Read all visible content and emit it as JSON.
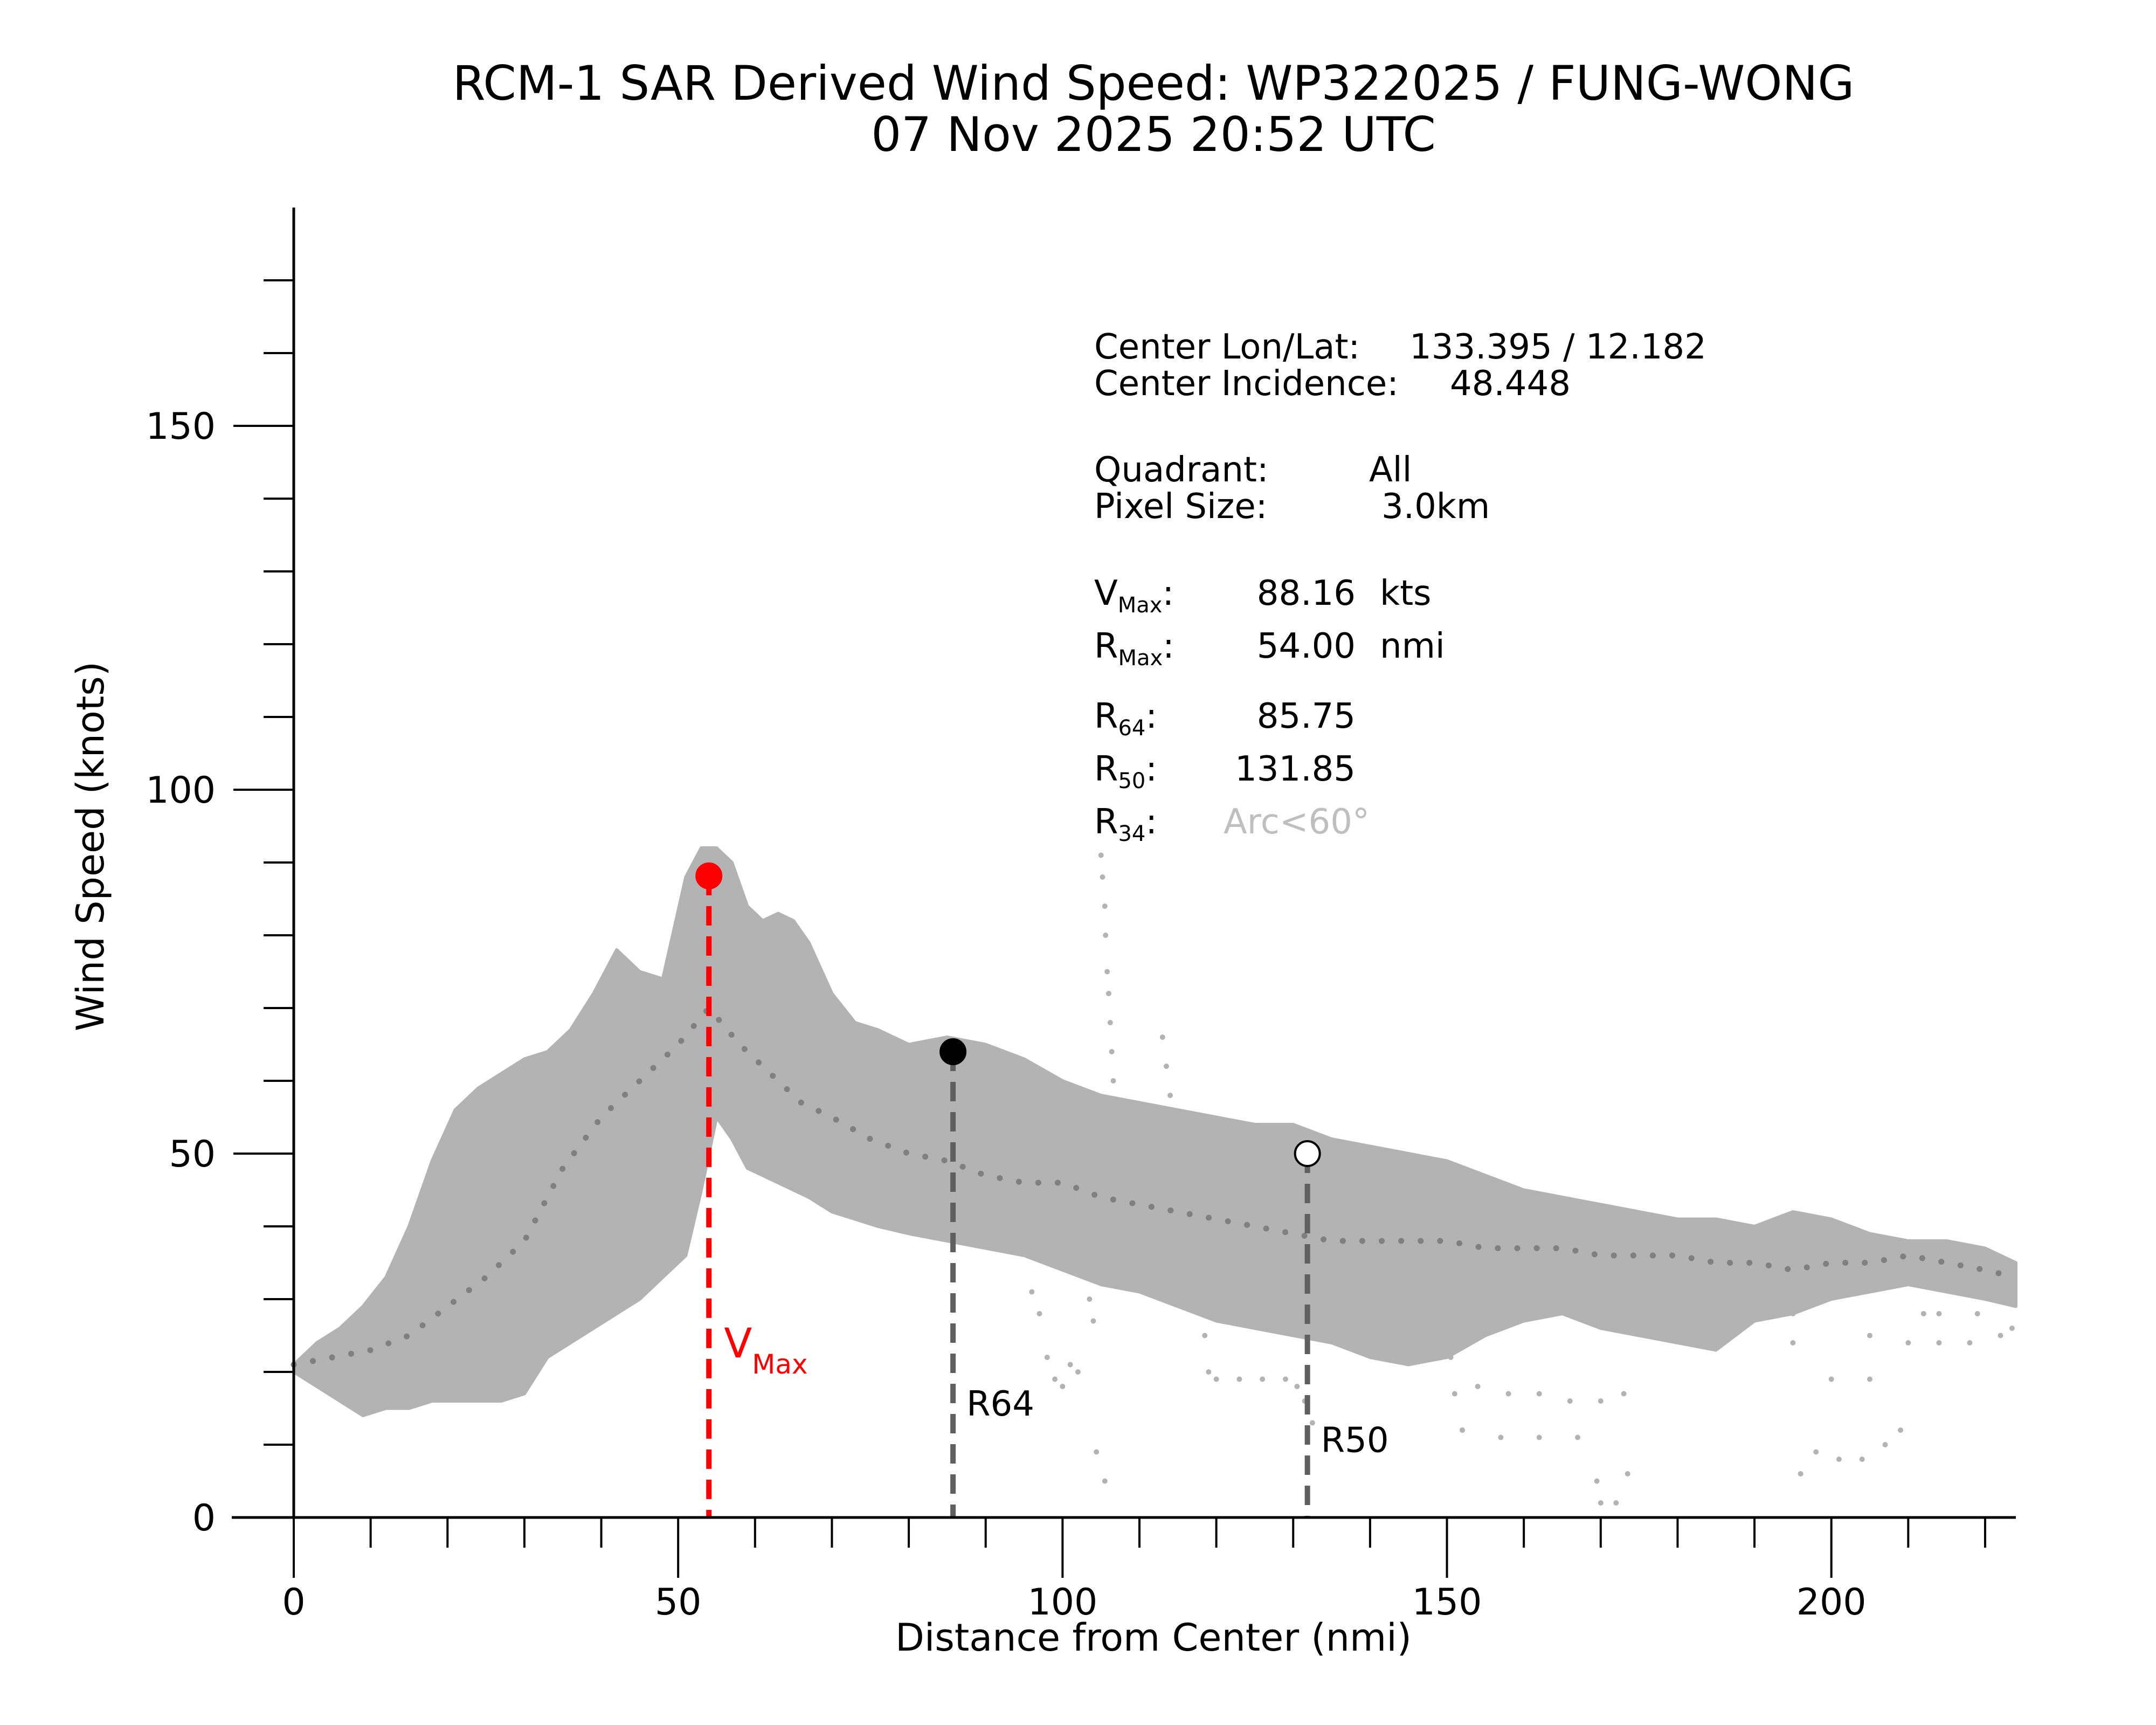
{
  "chart_data": {
    "type": "scatter",
    "title": "RCM-1 SAR Derived Wind Speed: WP322025 / FUNG-WONG",
    "subtitle": "07 Nov 2025 20:52 UTC",
    "xlabel": "Distance from Center (nmi)",
    "ylabel": "Wind Speed (knots)",
    "xlim": [
      0,
      224
    ],
    "ylim": [
      0,
      180
    ],
    "x_major_ticks": [
      0,
      50,
      100,
      150,
      200
    ],
    "x_minor_step": 10,
    "y_major_ticks": [
      0,
      50,
      100,
      150
    ],
    "y_minor_step": 10,
    "colors": {
      "scatter": "#b3b3b3",
      "mean": "#808080",
      "vmax": "#ff0000",
      "radius_line": "#606060",
      "r34_value": "#bfbfbf"
    },
    "scatter_envelope": {
      "name": "SAR wind speed samples",
      "x": [
        0,
        3,
        6,
        9,
        12,
        15,
        18,
        21,
        24,
        27,
        30,
        33,
        36,
        39,
        42,
        45,
        48,
        51,
        53,
        55,
        57,
        59,
        61,
        63,
        65,
        67,
        70,
        73,
        76,
        80,
        85,
        90,
        95,
        100,
        105,
        110,
        115,
        120,
        125,
        130,
        135,
        140,
        145,
        150,
        155,
        160,
        165,
        170,
        175,
        180,
        185,
        190,
        195,
        200,
        205,
        210,
        215,
        220,
        224
      ],
      "upper": [
        21,
        24,
        26,
        29,
        33,
        40,
        49,
        56,
        59,
        61,
        63,
        64,
        67,
        72,
        78,
        75,
        74,
        88,
        92,
        92,
        90,
        84,
        82,
        83,
        82,
        79,
        72,
        68,
        67,
        65,
        66,
        65,
        63,
        60,
        58,
        57,
        56,
        55,
        54,
        54,
        52,
        51,
        50,
        49,
        47,
        45,
        44,
        43,
        42,
        41,
        41,
        40,
        42,
        41,
        39,
        38,
        38,
        37,
        35
      ],
      "lower": [
        20,
        18,
        16,
        14,
        15,
        15,
        16,
        16,
        16,
        16,
        17,
        22,
        24,
        26,
        28,
        30,
        33,
        36,
        45,
        55,
        52,
        48,
        47,
        46,
        45,
        44,
        42,
        41,
        40,
        39,
        38,
        37,
        36,
        34,
        32,
        31,
        29,
        27,
        26,
        25,
        24,
        22,
        21,
        22,
        25,
        27,
        28,
        26,
        25,
        24,
        23,
        27,
        28,
        30,
        31,
        32,
        31,
        30,
        29
      ]
    },
    "outlier_points": {
      "name": "SAR outlier samples",
      "points": [
        [
          105.0,
          91
        ],
        [
          105.2,
          88
        ],
        [
          105.5,
          84
        ],
        [
          105.6,
          80
        ],
        [
          105.8,
          75
        ],
        [
          106.0,
          72
        ],
        [
          106.2,
          68
        ],
        [
          106.4,
          64
        ],
        [
          106.6,
          60
        ],
        [
          106.7,
          57
        ],
        [
          113.0,
          66
        ],
        [
          113.5,
          62
        ],
        [
          114.0,
          58
        ],
        [
          103.5,
          30
        ],
        [
          104.0,
          27
        ],
        [
          104.4,
          9
        ],
        [
          105.5,
          5
        ],
        [
          96.0,
          31
        ],
        [
          97.0,
          28
        ],
        [
          98.0,
          22
        ],
        [
          99.0,
          19
        ],
        [
          100.0,
          18
        ],
        [
          101.0,
          21
        ],
        [
          102.0,
          20
        ],
        [
          118.0,
          29
        ],
        [
          118.5,
          25
        ],
        [
          119.0,
          20
        ],
        [
          120.0,
          19
        ],
        [
          123.0,
          19
        ],
        [
          126.0,
          19
        ],
        [
          129.0,
          19
        ],
        [
          130.5,
          18
        ],
        [
          131.5,
          16
        ],
        [
          132.5,
          13
        ],
        [
          151.0,
          28
        ],
        [
          150.5,
          22
        ],
        [
          151.0,
          17
        ],
        [
          152.0,
          12
        ],
        [
          154.0,
          18
        ],
        [
          158.0,
          17
        ],
        [
          162.0,
          17
        ],
        [
          166.0,
          16
        ],
        [
          170.0,
          16
        ],
        [
          173.0,
          17
        ],
        [
          152.0,
          12
        ],
        [
          157.0,
          11
        ],
        [
          162.0,
          11
        ],
        [
          167.0,
          11
        ],
        [
          169.5,
          5
        ],
        [
          170.0,
          2
        ],
        [
          172.0,
          2
        ],
        [
          173.5,
          6
        ],
        [
          196.0,
          6
        ],
        [
          198.0,
          9
        ],
        [
          201.0,
          8
        ],
        [
          204.0,
          8
        ],
        [
          207.0,
          10
        ],
        [
          209.0,
          12
        ],
        [
          195.0,
          24
        ],
        [
          200.0,
          19
        ],
        [
          205.0,
          19
        ],
        [
          210.0,
          24
        ],
        [
          214.0,
          24
        ],
        [
          218.0,
          24
        ],
        [
          222.0,
          25
        ],
        [
          223.5,
          26
        ],
        [
          214.0,
          28
        ],
        [
          219.0,
          28
        ],
        [
          223.0,
          30
        ],
        [
          195.0,
          28
        ],
        [
          205.0,
          25
        ],
        [
          212.0,
          28
        ]
      ]
    },
    "mean_profile": {
      "name": "Mean wind speed",
      "x": [
        0,
        5,
        10,
        15,
        20,
        25,
        30,
        35,
        40,
        45,
        50,
        54,
        58,
        62,
        66,
        70,
        75,
        80,
        85,
        90,
        95,
        100,
        105,
        110,
        115,
        120,
        125,
        130,
        135,
        140,
        145,
        150,
        155,
        160,
        165,
        170,
        175,
        180,
        185,
        190,
        195,
        200,
        205,
        210,
        215,
        220,
        224
      ],
      "y": [
        21,
        22,
        23,
        25,
        29,
        33,
        38,
        48,
        55,
        60,
        65,
        70,
        65,
        61,
        57,
        55,
        52,
        50,
        49,
        47,
        46,
        46,
        44,
        43,
        42,
        41,
        40,
        39,
        38,
        38,
        38,
        38,
        37,
        37,
        37,
        36,
        36,
        36,
        35,
        35,
        34,
        35,
        35,
        36,
        35,
        34,
        33
      ]
    },
    "markers": [
      {
        "id": "vmax",
        "label": "V",
        "label_sub": "Max",
        "x": 54.0,
        "y": 88.16,
        "color": "#ff0000",
        "fill": "#ff0000",
        "label_y": 22
      },
      {
        "id": "r64",
        "label": "R64",
        "label_sub": "",
        "x": 85.75,
        "y": 64,
        "color": "#606060",
        "fill": "#000000",
        "label_y": 14
      },
      {
        "id": "r50",
        "label": "R50",
        "label_sub": "",
        "x": 131.85,
        "y": 50,
        "color": "#606060",
        "fill": "#ffffff",
        "label_y": 9
      }
    ],
    "info": {
      "center_label": "Center Lon/Lat:",
      "center_value": "133.395 /  12.182",
      "incidence_label": "Center Incidence:",
      "incidence_value": "48.448",
      "quadrant_label": "Quadrant:",
      "quadrant_value": "All",
      "pixel_label": "Pixel Size:",
      "pixel_value": "3.0km",
      "vmax_label": "V",
      "vmax_sub": "Max",
      "vmax_value": "88.16",
      "vmax_unit": "kts",
      "rmax_label": "R",
      "rmax_sub": "Max",
      "rmax_value": "54.00",
      "rmax_unit": "nmi",
      "r64_label": "R",
      "r64_sub": "64",
      "r64_value": "85.75",
      "r50_label": "R",
      "r50_sub": "50",
      "r50_value": "131.85",
      "r34_label": "R",
      "r34_sub": "34",
      "r34_value": "Arc<60°"
    }
  }
}
